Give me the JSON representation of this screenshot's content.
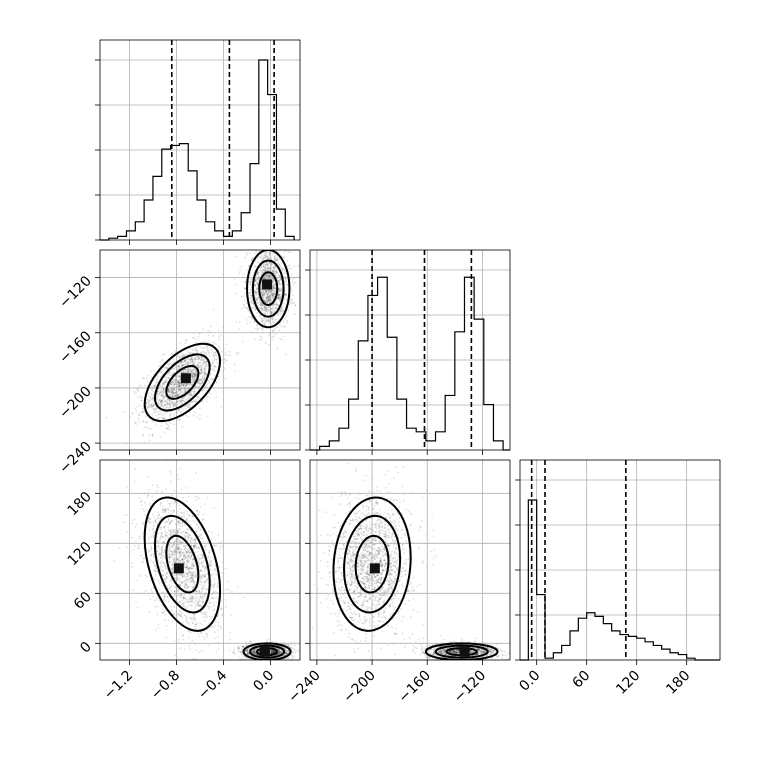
{
  "chart_data": {
    "type": "corner",
    "grid": true,
    "panels": [
      {
        "id": "hist-p0",
        "type": "histogram",
        "col": 0,
        "row": 0,
        "xlim": [
          -1.45,
          0.25
        ],
        "ymax": 1.1,
        "xticks": [
          -1.2,
          -0.8,
          -0.4,
          0.0
        ],
        "bins": [
          -1.45,
          -1.375,
          -1.3,
          -1.225,
          -1.15,
          -1.075,
          -1.0,
          -0.925,
          -0.85,
          -0.775,
          -0.7,
          -0.625,
          -0.55,
          -0.475,
          -0.4,
          -0.325,
          -0.25,
          -0.175,
          -0.1,
          -0.025,
          0.05,
          0.125,
          0.2
        ],
        "counts": [
          0.0,
          0.01,
          0.02,
          0.05,
          0.1,
          0.22,
          0.35,
          0.5,
          0.52,
          0.53,
          0.38,
          0.22,
          0.1,
          0.05,
          0.02,
          0.05,
          0.15,
          0.42,
          0.99,
          0.8,
          0.17,
          0.02
        ],
        "quantiles": [
          -0.84,
          -0.35,
          0.03
        ]
      },
      {
        "id": "hist-p1",
        "type": "histogram",
        "col": 1,
        "row": 1,
        "xlim": [
          -245,
          -100
        ],
        "ymax": 1.1,
        "xticks": [
          -240,
          -200,
          -160,
          -120
        ],
        "bins": [
          -245,
          -238,
          -231,
          -224,
          -217,
          -210,
          -203,
          -196,
          -189,
          -182,
          -175,
          -168,
          -161,
          -154,
          -147,
          -140,
          -133,
          -126,
          -119,
          -112,
          -105,
          -100
        ],
        "counts": [
          0.0,
          0.02,
          0.05,
          0.12,
          0.28,
          0.6,
          0.85,
          0.95,
          0.62,
          0.28,
          0.12,
          0.1,
          0.05,
          0.1,
          0.3,
          0.65,
          0.95,
          0.72,
          0.25,
          0.05,
          0.0
        ],
        "quantiles": [
          -200,
          -162,
          -128
        ]
      },
      {
        "id": "hist-p2",
        "type": "histogram",
        "col": 2,
        "row": 2,
        "xlim": [
          -20,
          220
        ],
        "ymax": 1.1,
        "xticks": [
          0,
          60,
          120,
          180
        ],
        "bins": [
          -20,
          -10,
          0,
          10,
          20,
          30,
          40,
          50,
          60,
          70,
          80,
          90,
          100,
          110,
          120,
          130,
          140,
          150,
          160,
          170,
          180,
          190,
          200,
          210,
          220
        ],
        "counts": [
          0.0,
          0.88,
          0.36,
          0.01,
          0.04,
          0.08,
          0.16,
          0.23,
          0.26,
          0.24,
          0.2,
          0.16,
          0.14,
          0.13,
          0.12,
          0.1,
          0.08,
          0.06,
          0.04,
          0.03,
          0.01,
          0.0,
          0.0,
          0.0
        ],
        "quantiles": [
          -6,
          10,
          107
        ]
      },
      {
        "id": "joint-p1-p0",
        "type": "scatter-contour",
        "col": 0,
        "row": 1,
        "xlim": [
          -1.45,
          0.25
        ],
        "ylim": [
          -245,
          -100
        ],
        "xticks": [
          -1.2,
          -0.8,
          -0.4,
          0.0
        ],
        "yticks": [
          -240,
          -200,
          -160,
          -120
        ],
        "clusters": [
          {
            "cx": -0.75,
            "cy": -196,
            "sx": 0.16,
            "sy": 14,
            "rho": 0.55,
            "n": 1700,
            "peak": [
              -0.72,
              -193
            ]
          },
          {
            "cx": -0.02,
            "cy": -128,
            "sx": 0.09,
            "sy": 14,
            "rho": 0.0,
            "n": 1400,
            "peak": [
              -0.03,
              -125
            ]
          }
        ]
      },
      {
        "id": "joint-p2-p0",
        "type": "scatter-contour",
        "col": 0,
        "row": 2,
        "xlim": [
          -1.45,
          0.25
        ],
        "ylim": [
          -20,
          220
        ],
        "xticks": [
          -1.2,
          -0.8,
          -0.4,
          0.0
        ],
        "yticks": [
          0,
          60,
          120,
          180
        ],
        "clusters": [
          {
            "cx": -0.75,
            "cy": 95,
            "sx": 0.16,
            "sy": 40,
            "rho": -0.4,
            "n": 1700,
            "peak": [
              -0.78,
              90
            ]
          },
          {
            "cx": -0.03,
            "cy": -10,
            "sx": 0.1,
            "sy": 5,
            "rho": 0.0,
            "n": 1300,
            "peak": [
              -0.05,
              -10
            ]
          }
        ]
      },
      {
        "id": "joint-p2-p1",
        "type": "scatter-contour",
        "col": 1,
        "row": 2,
        "xlim": [
          -245,
          -100
        ],
        "ylim": [
          -20,
          220
        ],
        "xticks": [
          -240,
          -200,
          -160,
          -120
        ],
        "yticks": [
          0,
          60,
          120,
          180
        ],
        "clusters": [
          {
            "cx": -200,
            "cy": 95,
            "sx": 14,
            "sy": 40,
            "rho": 0.1,
            "n": 1700,
            "peak": [
              -198,
              90
            ]
          },
          {
            "cx": -135,
            "cy": -10,
            "sx": 13,
            "sy": 5,
            "rho": 0.0,
            "n": 1300,
            "peak": [
              -133,
              -10
            ]
          }
        ]
      }
    ]
  }
}
